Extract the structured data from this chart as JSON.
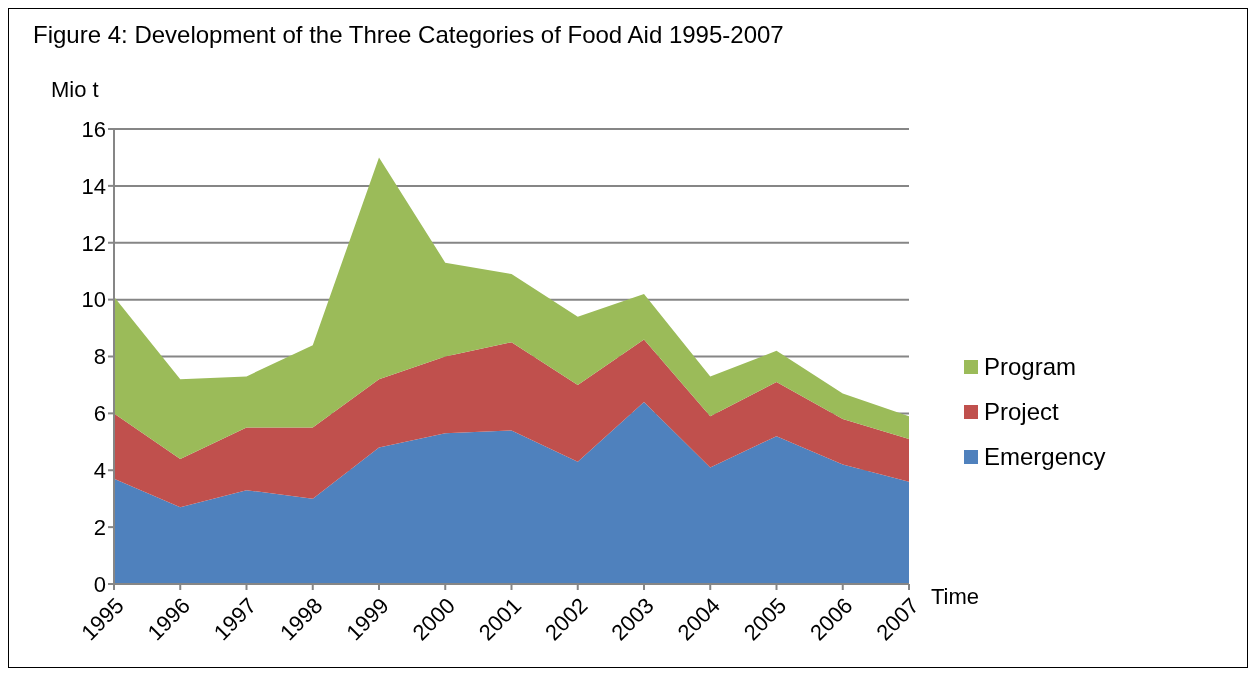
{
  "chart_data": {
    "type": "area",
    "title": "Figure 4: Development of the Three Categories of Food Aid 1995-2007",
    "ylabel": "Mio t",
    "xlabel": "Time",
    "categories": [
      "1995",
      "1996",
      "1997",
      "1998",
      "1999",
      "2000",
      "2001",
      "2002",
      "2003",
      "2004",
      "2005",
      "2006",
      "2007"
    ],
    "stacked": true,
    "ylim": [
      0,
      16
    ],
    "yticks": [
      0,
      2,
      4,
      6,
      8,
      10,
      12,
      14,
      16
    ],
    "grid": "y",
    "legend": "right",
    "series": [
      {
        "name": "Emergency",
        "color": "#4f81bd",
        "values": [
          3.7,
          2.7,
          3.3,
          3.0,
          4.8,
          5.3,
          5.4,
          4.3,
          6.4,
          4.1,
          5.2,
          4.2,
          3.6
        ]
      },
      {
        "name": "Project",
        "color": "#c0504d",
        "values": [
          2.3,
          1.7,
          2.2,
          2.5,
          2.4,
          2.7,
          3.1,
          2.7,
          2.2,
          1.8,
          1.9,
          1.6,
          1.5
        ]
      },
      {
        "name": "Program",
        "color": "#9bbb59",
        "values": [
          4.1,
          2.8,
          1.8,
          2.9,
          7.8,
          3.3,
          2.4,
          2.4,
          1.6,
          1.4,
          1.1,
          0.9,
          0.8
        ]
      }
    ]
  }
}
